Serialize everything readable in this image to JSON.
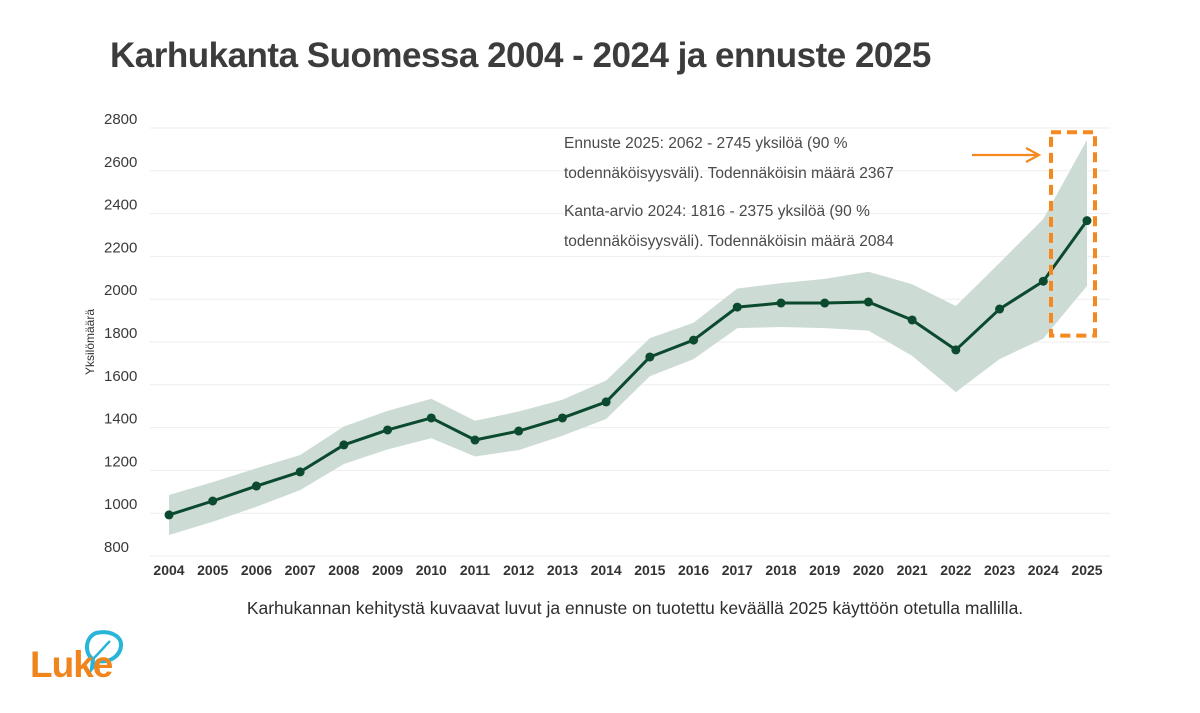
{
  "title": "Karhukanta Suomessa 2004 - 2024 ja ennuste 2025",
  "caption": "Karhukannan kehitystä kuvaavat luvut ja ennuste on tuotettu keväällä 2025 käyttöön otetulla mallilla.",
  "logo": {
    "text": "Luke",
    "brand_color": "#f0851e",
    "leaf_color": "#29b5d8"
  },
  "colors": {
    "line": "#0b4a2e",
    "band": "#cddbd5",
    "highlight": "#f5891f",
    "grid": "#eeeeee"
  },
  "chart_data": {
    "type": "line",
    "title": "Karhukanta Suomessa 2004 - 2024 ja ennuste 2025",
    "xlabel": "",
    "ylabel": "Yksilömäärä",
    "ylim": [
      800,
      2800
    ],
    "yticks": [
      800,
      1000,
      1200,
      1400,
      1600,
      1800,
      2000,
      2200,
      2400,
      2600,
      2800
    ],
    "grid": true,
    "categories": [
      "2004",
      "2005",
      "2006",
      "2007",
      "2008",
      "2009",
      "2010",
      "2011",
      "2012",
      "2013",
      "2014",
      "2015",
      "2016",
      "2017",
      "2018",
      "2019",
      "2020",
      "2021",
      "2022",
      "2023",
      "2024",
      "2025"
    ],
    "series": [
      {
        "name": "Todennäköisin määrä",
        "values": [
          992,
          1057,
          1127,
          1193,
          1319,
          1389,
          1445,
          1342,
          1384,
          1445,
          1520,
          1730,
          1809,
          1963,
          1982,
          1982,
          1987,
          1903,
          1763,
          1954,
          2084,
          2367
        ]
      },
      {
        "name": "90 % todennäköisyysväli (alaraja)",
        "values": [
          898,
          960,
          1030,
          1108,
          1230,
          1298,
          1350,
          1265,
          1295,
          1362,
          1440,
          1640,
          1720,
          1865,
          1870,
          1865,
          1853,
          1735,
          1566,
          1720,
          1816,
          2062
        ]
      },
      {
        "name": "90 % todennäköisyysväli (yläraja)",
        "values": [
          1085,
          1145,
          1210,
          1272,
          1405,
          1478,
          1535,
          1432,
          1475,
          1530,
          1620,
          1818,
          1890,
          2050,
          2075,
          2095,
          2128,
          2070,
          1968,
          2170,
          2375,
          2745
        ]
      }
    ],
    "annotations": [
      {
        "line1": "Ennuste 2025: 2062 - 2745 yksilöä (90 %",
        "line2": "todennäköisyysväli). Todennäköisin määrä 2367"
      },
      {
        "line1": "Kanta-arvio 2024: 1816 - 2375 yksilöä (90 %",
        "line2": "todennäköisyysväli). Todennäköisin määrä 2084"
      }
    ],
    "highlight": {
      "category": "2025",
      "range": [
        1830,
        2780
      ]
    }
  }
}
